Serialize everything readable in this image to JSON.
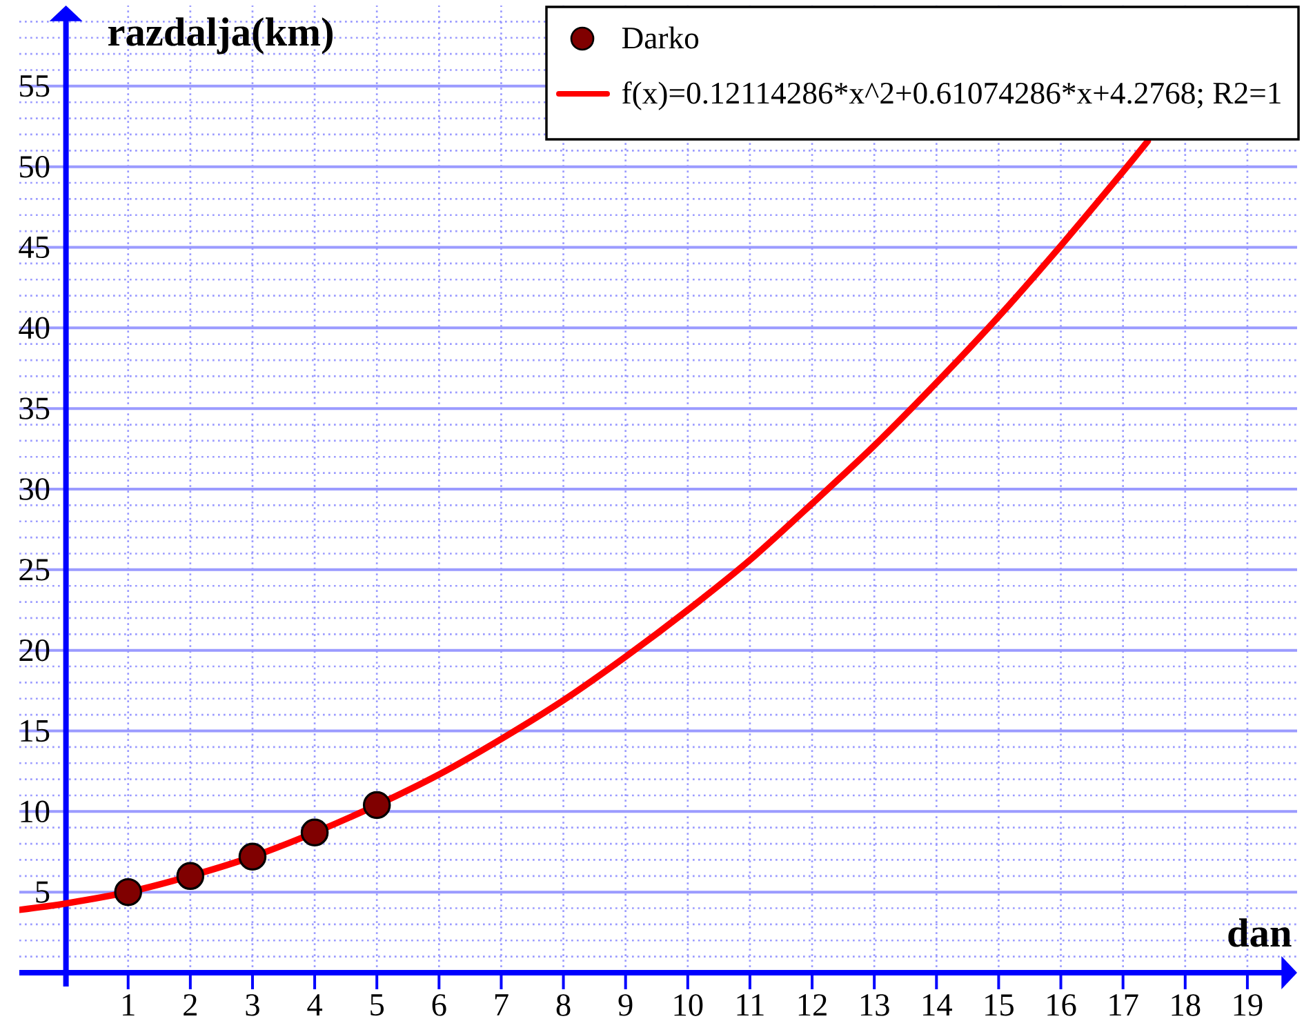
{
  "chart_data": {
    "type": "scatter",
    "xlabel": "dan",
    "ylabel": "razdalja(km)",
    "xlim": [
      -0.75,
      19.8
    ],
    "ylim": [
      0,
      60
    ],
    "xticks": [
      1,
      2,
      3,
      4,
      5,
      6,
      7,
      8,
      9,
      10,
      11,
      12,
      13,
      14,
      15,
      16,
      17,
      18,
      19
    ],
    "yticks": [
      5,
      10,
      15,
      20,
      25,
      30,
      35,
      40,
      45,
      50,
      55
    ],
    "grid": true,
    "legend": "top right",
    "series": [
      {
        "name": "Darko",
        "color": "#800000",
        "marker": "circle",
        "x": [
          1,
          2,
          3,
          4,
          5
        ],
        "values": [
          5,
          6,
          7.2,
          8.7,
          10.4
        ]
      },
      {
        "name": "f(x)=0.12114286*x^2+0.61074286*x+4.2768; R2=1",
        "type": "line",
        "color": "#ff0000",
        "line_style": "solid",
        "x": [
          -0.75,
          0,
          1,
          2,
          3,
          4,
          5,
          6,
          7,
          8,
          9,
          10,
          11,
          12,
          13,
          14,
          15,
          16,
          17,
          17.4
        ],
        "values": [
          3.9,
          4.3,
          5.0,
          6.0,
          7.2,
          8.7,
          10.4,
          12.3,
          14.5,
          16.9,
          19.6,
          22.5,
          25.6,
          29.1,
          32.7,
          36.6,
          40.7,
          45.1,
          49.7,
          51.6
        ]
      }
    ]
  }
}
